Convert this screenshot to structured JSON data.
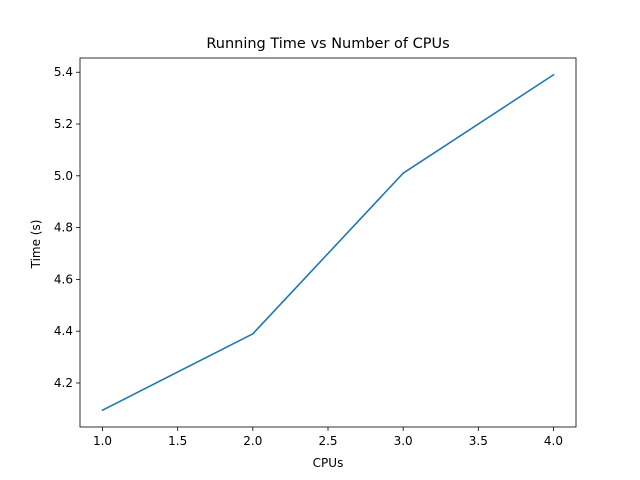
{
  "chart_data": {
    "type": "line",
    "title": "Running Time vs Number of CPUs",
    "xlabel": "CPUs",
    "ylabel": "Time (s)",
    "x": [
      1,
      2,
      3,
      4
    ],
    "series": [
      {
        "values": [
          4.095,
          4.39,
          5.01,
          5.39
        ],
        "color": "#1f77b4"
      }
    ],
    "xlim": [
      0.85,
      4.15
    ],
    "ylim": [
      4.03,
      5.455
    ],
    "xticks": [
      "1.0",
      "1.5",
      "2.0",
      "2.5",
      "3.0",
      "3.5",
      "4.0"
    ],
    "yticks": [
      "4.2",
      "4.4",
      "4.6",
      "4.8",
      "5.0",
      "5.2",
      "5.4"
    ],
    "grid": false,
    "legend": "none"
  }
}
